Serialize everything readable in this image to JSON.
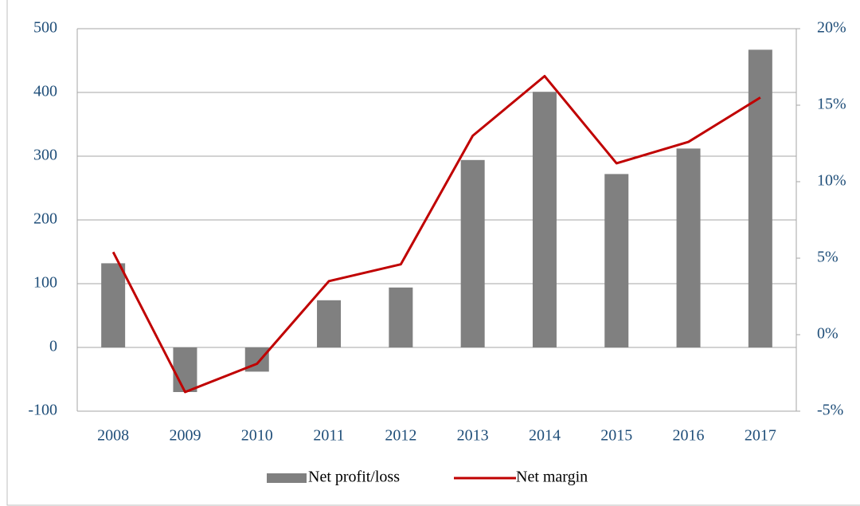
{
  "chart_data": {
    "type": "bar-line",
    "categories": [
      "2008",
      "2009",
      "2010",
      "2011",
      "2012",
      "2013",
      "2014",
      "2015",
      "2016",
      "2017"
    ],
    "series": [
      {
        "name": "Net profit/loss",
        "type": "bar",
        "color": "#808080",
        "values": [
          132,
          -70,
          -38,
          74,
          94,
          294,
          401,
          272,
          312,
          467
        ]
      },
      {
        "name": "Net margin",
        "type": "line",
        "axis": "y2",
        "color": "#c00000",
        "values": [
          5.4,
          -3.75,
          -1.9,
          3.5,
          4.6,
          13.0,
          16.9,
          11.2,
          12.6,
          15.5
        ]
      }
    ],
    "ylim": [
      -100,
      500
    ],
    "yticks": [
      -100,
      0,
      100,
      200,
      300,
      400,
      500
    ],
    "y2lim": [
      -5,
      20
    ],
    "y2ticks": [
      {
        "value": -5,
        "label": "-5%"
      },
      {
        "value": 0,
        "label": "0%"
      },
      {
        "value": 5,
        "label": "5%"
      },
      {
        "value": 10,
        "label": "10%"
      },
      {
        "value": 15,
        "label": "15%"
      },
      {
        "value": 20,
        "label": "20%"
      }
    ],
    "grid": true,
    "legend": "bottom"
  }
}
